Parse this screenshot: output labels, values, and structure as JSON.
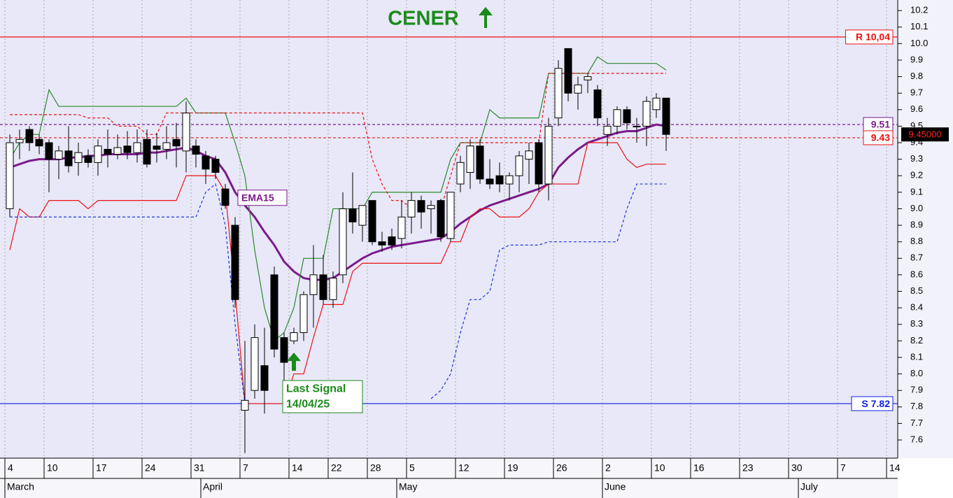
{
  "chart_data": {
    "type": "candlestick",
    "title": "CENER",
    "ylim": [
      7.49,
      10.264
    ],
    "yticks": [
      7.6,
      7.7,
      7.8,
      7.9,
      {
        "value": 8,
        "label": "8.0"
      },
      8.1,
      8.2,
      8.3,
      8.4,
      8.5,
      8.6,
      8.7,
      8.8,
      8.9,
      {
        "value": 9,
        "label": "9.0"
      },
      9.1,
      9.2,
      9.3,
      9.4,
      9.5,
      9.6,
      9.7,
      9.8,
      9.9,
      {
        "value": 10,
        "label": "10.0"
      },
      10.1,
      10.2
    ],
    "xticks": [
      {
        "value": 0,
        "label": "4"
      },
      {
        "value": 4,
        "label": "10"
      },
      {
        "value": 9,
        "label": "17"
      },
      {
        "value": 14,
        "label": "24"
      },
      {
        "value": 19,
        "label": "31"
      },
      {
        "value": 24,
        "label": "7"
      },
      {
        "value": 29,
        "label": "14"
      },
      {
        "value": 33,
        "label": "22"
      },
      {
        "value": 37,
        "label": "28"
      },
      {
        "value": 41,
        "label": "5"
      },
      {
        "value": 46,
        "label": "12"
      },
      {
        "value": 51,
        "label": "19"
      },
      {
        "value": 56,
        "label": "26"
      },
      {
        "value": 61,
        "label": "2"
      },
      {
        "value": 66,
        "label": "10"
      },
      {
        "value": 70,
        "label": "16"
      },
      {
        "value": 75,
        "label": "23"
      },
      {
        "value": 80,
        "label": "30"
      },
      {
        "value": 85,
        "label": "7"
      },
      {
        "value": 90,
        "label": "14"
      }
    ],
    "months": [
      {
        "value": 0,
        "label": "March"
      },
      {
        "value": 20,
        "label": "April"
      },
      {
        "value": 40,
        "label": "May"
      },
      {
        "value": 61,
        "label": "June"
      },
      {
        "value": 81,
        "label": "July"
      }
    ],
    "open": [
      9.0,
      9.4,
      9.48,
      9.42,
      9.4,
      9.3,
      9.35,
      9.28,
      9.32,
      9.28,
      9.36,
      9.33,
      9.38,
      9.34,
      9.42,
      9.38,
      9.36,
      9.42,
      9.35,
      9.38,
      9.32,
      9.3,
      9.12,
      8.9,
      7.78,
      7.9,
      8.05,
      8.6,
      8.22,
      8.2,
      8.25,
      8.48,
      8.6,
      8.45,
      8.6,
      9.0,
      8.9,
      9.05,
      8.8,
      8.83,
      8.82,
      8.95,
      9.05,
      9.0,
      9.05,
      8.82,
      9.15,
      9.22,
      9.38,
      9.18,
      9.2,
      9.15,
      9.2,
      9.3,
      9.4,
      9.15,
      9.55,
      9.97,
      9.7,
      9.78,
      9.72,
      9.45,
      9.5,
      9.6,
      9.5,
      9.5,
      9.6,
      9.67
    ],
    "high": [
      9.45,
      9.48,
      9.5,
      9.45,
      9.42,
      9.38,
      9.5,
      9.4,
      9.36,
      9.42,
      9.48,
      9.45,
      9.47,
      9.48,
      9.48,
      9.46,
      9.5,
      9.52,
      9.65,
      9.42,
      9.35,
      9.32,
      9.15,
      8.95,
      8.2,
      8.3,
      8.28,
      8.65,
      8.25,
      8.28,
      8.5,
      8.78,
      8.72,
      8.62,
      9.1,
      9.22,
      9.02,
      9.05,
      8.86,
      8.88,
      9.05,
      9.1,
      9.08,
      9.05,
      9.06,
      9.1,
      9.32,
      9.42,
      9.42,
      9.3,
      9.28,
      9.22,
      9.35,
      9.4,
      9.42,
      9.55,
      9.9,
      9.97,
      9.8,
      9.82,
      9.75,
      9.55,
      9.62,
      9.62,
      9.55,
      9.68,
      9.7,
      9.67
    ],
    "low": [
      8.95,
      9.3,
      9.35,
      9.33,
      9.1,
      9.18,
      9.22,
      9.2,
      9.25,
      9.2,
      9.25,
      9.3,
      9.3,
      9.28,
      9.25,
      9.28,
      9.3,
      9.25,
      9.22,
      9.25,
      9.15,
      9.18,
      9.0,
      8.4,
      7.52,
      7.85,
      7.76,
      8.1,
      7.95,
      8.18,
      8.2,
      8.28,
      8.42,
      8.4,
      8.55,
      8.85,
      8.8,
      8.78,
      8.74,
      8.75,
      8.76,
      8.85,
      8.88,
      8.85,
      8.8,
      8.8,
      9.1,
      9.12,
      9.15,
      9.12,
      9.1,
      9.05,
      9.1,
      9.15,
      9.1,
      9.05,
      9.5,
      9.65,
      9.6,
      9.7,
      9.5,
      9.38,
      9.45,
      9.48,
      9.4,
      9.38,
      9.55,
      9.35
    ],
    "close": [
      9.4,
      9.42,
      9.4,
      9.38,
      9.3,
      9.35,
      9.26,
      9.34,
      9.28,
      9.38,
      9.33,
      9.37,
      9.34,
      9.4,
      9.27,
      9.36,
      9.4,
      9.38,
      9.58,
      9.33,
      9.24,
      9.22,
      9.02,
      8.45,
      7.84,
      8.22,
      7.9,
      8.15,
      8.07,
      8.25,
      8.48,
      8.6,
      8.45,
      8.58,
      9.0,
      8.92,
      9.02,
      8.8,
      8.78,
      8.78,
      8.95,
      9.05,
      8.98,
      9.02,
      8.83,
      9.1,
      9.28,
      9.38,
      9.18,
      9.15,
      9.15,
      9.2,
      9.32,
      9.35,
      9.15,
      9.5,
      9.85,
      9.7,
      9.75,
      9.8,
      9.55,
      9.5,
      9.6,
      9.52,
      9.5,
      9.65,
      9.67,
      9.45
    ],
    "series": [
      {
        "name": "EMA15",
        "color": "#7a1a8a",
        "values": [
          9.25,
          9.27,
          9.29,
          9.3,
          9.3,
          9.3,
          9.31,
          9.31,
          9.32,
          9.32,
          9.33,
          9.33,
          9.33,
          9.33,
          9.34,
          9.34,
          9.35,
          9.36,
          9.37,
          9.35,
          9.32,
          9.3,
          9.22,
          9.1,
          9.02,
          8.95,
          8.86,
          8.78,
          8.68,
          8.62,
          8.58,
          8.57,
          8.57,
          8.58,
          8.62,
          8.66,
          8.7,
          8.73,
          8.75,
          8.77,
          8.78,
          8.79,
          8.8,
          8.81,
          8.82,
          8.86,
          8.91,
          8.95,
          8.99,
          9.02,
          9.04,
          9.06,
          9.08,
          9.1,
          9.12,
          9.15,
          9.25,
          9.31,
          9.36,
          9.4,
          9.42,
          9.44,
          9.46,
          9.47,
          9.47,
          9.49,
          9.51,
          9.5
        ]
      },
      {
        "color": "#2a8a2a",
        "values": [
          9.3,
          9.4,
          9.45,
          9.45,
          9.72,
          9.62,
          9.62,
          9.62,
          9.62,
          9.62,
          9.62,
          9.62,
          9.62,
          9.62,
          9.62,
          9.62,
          9.62,
          9.62,
          9.67,
          9.58,
          9.58,
          9.58,
          9.58,
          9.4,
          9.2,
          8.75,
          8.4,
          8.2,
          8.25,
          8.4,
          8.7,
          8.7,
          8.7,
          9.0,
          9.0,
          9.0,
          9.0,
          9.1,
          9.1,
          9.1,
          9.1,
          9.1,
          9.1,
          9.1,
          9.1,
          9.3,
          9.4,
          9.4,
          9.4,
          9.6,
          9.55,
          9.55,
          9.55,
          9.55,
          9.55,
          9.82,
          9.82,
          9.82,
          9.82,
          9.82,
          9.92,
          9.88,
          9.88,
          9.88,
          9.88,
          9.88,
          9.88,
          9.84
        ]
      },
      {
        "color": "#ee1111",
        "values": [
          8.75,
          9.0,
          8.95,
          8.95,
          9.05,
          9.05,
          9.05,
          9.05,
          9.0,
          9.05,
          9.05,
          9.05,
          9.05,
          9.05,
          9.05,
          9.05,
          9.05,
          9.05,
          9.2,
          9.2,
          9.2,
          9.2,
          9.1,
          8.5,
          7.82,
          7.82,
          7.82,
          7.82,
          7.82,
          8.0,
          8.0,
          8.22,
          8.42,
          8.42,
          8.42,
          8.62,
          8.67,
          8.67,
          8.67,
          8.67,
          8.67,
          8.67,
          8.67,
          8.67,
          8.67,
          8.8,
          8.8,
          8.95,
          9.0,
          9.0,
          8.95,
          8.95,
          8.95,
          9.0,
          9.1,
          9.15,
          9.15,
          9.15,
          9.15,
          9.4,
          9.4,
          9.4,
          9.4,
          9.3,
          9.25,
          9.27,
          9.27,
          9.27
        ]
      },
      {
        "color": "#ee1111",
        "dash": true,
        "values": [
          9.57,
          9.57,
          9.57,
          9.57,
          9.57,
          9.57,
          9.57,
          9.57,
          9.55,
          9.55,
          9.55,
          9.5,
          9.5,
          9.5,
          9.45,
          9.45,
          9.58,
          9.58,
          9.58,
          9.58,
          9.58,
          9.58,
          9.58,
          9.58,
          9.58,
          9.58,
          9.58,
          9.58,
          9.58,
          9.58,
          9.58,
          9.58,
          9.58,
          9.58,
          9.58,
          9.58,
          9.58,
          9.3,
          9.15,
          9.05,
          9.05,
          9.0,
          9.0,
          9.0,
          9.0,
          9.2,
          9.4,
          9.4,
          9.4,
          9.4,
          9.4,
          9.4,
          9.4,
          9.4,
          9.4,
          9.82,
          9.82,
          9.82,
          9.82,
          9.82,
          9.82,
          9.82,
          9.82,
          9.82,
          9.82,
          9.82,
          9.82,
          9.82
        ]
      },
      {
        "color": "#2233dd",
        "dash": true,
        "values": [
          8.95,
          8.95,
          8.95,
          8.95,
          8.95,
          8.95,
          8.95,
          8.95,
          8.95,
          8.95,
          8.95,
          8.95,
          8.95,
          8.95,
          8.95,
          8.95,
          8.95,
          8.95,
          8.95,
          8.95,
          9.1,
          9.15,
          8.9,
          8.3,
          7.82,
          null,
          null,
          null,
          null,
          null,
          null,
          null,
          null,
          null,
          null,
          null,
          null,
          null,
          null,
          null,
          null,
          null,
          null,
          7.85,
          7.9,
          8.0,
          8.25,
          8.45,
          8.45,
          8.5,
          8.75,
          8.78,
          8.78,
          8.78,
          8.78,
          8.8,
          8.8,
          8.8,
          8.8,
          8.8,
          8.8,
          8.8,
          8.8,
          9.0,
          9.15,
          9.15,
          9.15,
          9.15
        ]
      }
    ],
    "hlines": [
      {
        "value": 10.04,
        "label": "R 10,04",
        "color": "#ee1111"
      },
      {
        "value": 7.82,
        "label": "S 7.82",
        "color": "#1122dd"
      },
      {
        "value": 9.51,
        "label": "9.51",
        "color": "#7a1a8a",
        "dash": true
      },
      {
        "value": 9.43,
        "label": "9.43",
        "color": "#ee1111",
        "dash": true
      }
    ],
    "last_price": {
      "value": 9.45,
      "label": "9.45000"
    },
    "signal": {
      "index": 29,
      "label": [
        "Last Signal",
        "14/04/25"
      ]
    },
    "ema_label_index": 24
  }
}
